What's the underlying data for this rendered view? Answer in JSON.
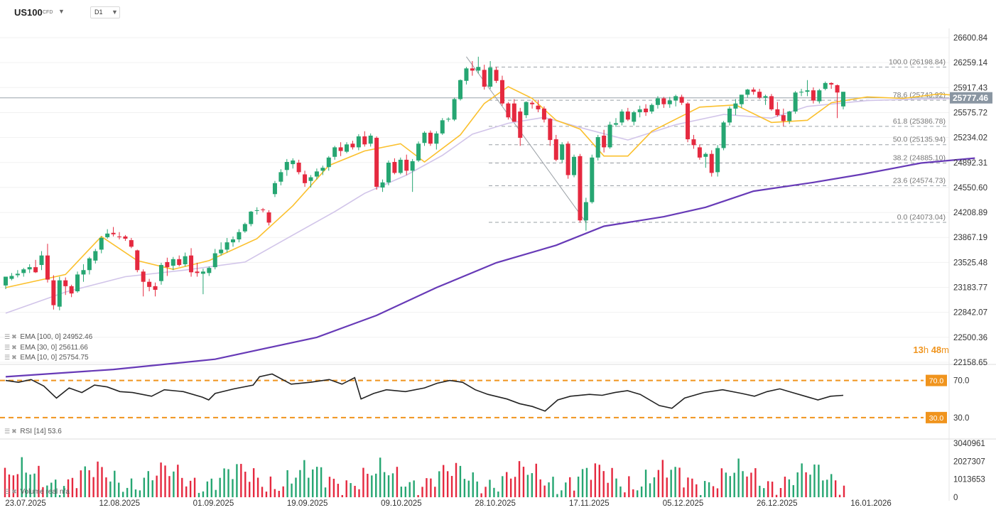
{
  "header": {
    "symbol": "US100",
    "symbol_type": "CFD",
    "timeframe": "D1"
  },
  "chart_data": {
    "type": "candlestick",
    "price_axis_ticks": [
      "26600.84",
      "26259.14",
      "25917.43",
      "25575.72",
      "25234.02",
      "24892.31",
      "24550.60",
      "24208.89",
      "23867.19",
      "23525.48",
      "23183.77",
      "22842.07",
      "22500.36",
      "22158.65"
    ],
    "ylim": [
      22158.65,
      26600.84
    ],
    "date_ticks": [
      "23.07.2025",
      "12.08.2025",
      "01.09.2025",
      "19.09.2025",
      "09.10.2025",
      "28.10.2025",
      "17.11.2025",
      "05.12.2025",
      "26.12.2025",
      "16.01.2026"
    ],
    "last_price": "25777.46",
    "candles_ohlc": [
      [
        23210,
        23330,
        23160,
        23330
      ],
      [
        23300,
        23380,
        23280,
        23340
      ],
      [
        23350,
        23420,
        23320,
        23370
      ],
      [
        23380,
        23450,
        23330,
        23430
      ],
      [
        23430,
        23500,
        23380,
        23460
      ],
      [
        23460,
        23560,
        23380,
        23390
      ],
      [
        23490,
        23680,
        23420,
        23620
      ],
      [
        23620,
        23780,
        23250,
        23290
      ],
      [
        23280,
        23350,
        22880,
        22940
      ],
      [
        22920,
        23330,
        22870,
        23280
      ],
      [
        23280,
        23320,
        23080,
        23200
      ],
      [
        23200,
        23220,
        23050,
        23100
      ],
      [
        23130,
        23400,
        23110,
        23360
      ],
      [
        23360,
        23500,
        23260,
        23420
      ],
      [
        23420,
        23600,
        23360,
        23580
      ],
      [
        23550,
        23710,
        23510,
        23680
      ],
      [
        23700,
        23880,
        23650,
        23860
      ],
      [
        23870,
        23980,
        23850,
        23920
      ],
      [
        23930,
        24010,
        23880,
        23910
      ],
      [
        23880,
        23940,
        23840,
        23870
      ],
      [
        23880,
        23900,
        23820,
        23850
      ],
      [
        23830,
        23860,
        23720,
        23740
      ],
      [
        23690,
        23700,
        23390,
        23420
      ],
      [
        23400,
        23430,
        23060,
        23260
      ],
      [
        23260,
        23300,
        23130,
        23190
      ],
      [
        23200,
        23250,
        23060,
        23150
      ],
      [
        23270,
        23520,
        23220,
        23490
      ],
      [
        23530,
        23590,
        23340,
        23460
      ],
      [
        23480,
        23600,
        23420,
        23570
      ],
      [
        23570,
        23620,
        23470,
        23490
      ],
      [
        23500,
        23660,
        23470,
        23610
      ],
      [
        23620,
        23720,
        23330,
        23390
      ],
      [
        23400,
        23520,
        23330,
        23380
      ],
      [
        23370,
        23440,
        23090,
        23400
      ],
      [
        23380,
        23470,
        23340,
        23450
      ],
      [
        23460,
        23710,
        23430,
        23650
      ],
      [
        23650,
        23800,
        23620,
        23700
      ],
      [
        23700,
        23860,
        23660,
        23800
      ],
      [
        23800,
        23880,
        23740,
        23840
      ],
      [
        23840,
        23980,
        23800,
        23940
      ],
      [
        23950,
        24070,
        23930,
        24050
      ],
      [
        24050,
        24230,
        24020,
        24220
      ],
      [
        24230,
        24280,
        24180,
        24240
      ],
      [
        24250,
        24270,
        24210,
        24240
      ],
      [
        24210,
        24240,
        24030,
        24070
      ],
      [
        24460,
        24640,
        24420,
        24610
      ],
      [
        24630,
        24800,
        24580,
        24760
      ],
      [
        24790,
        24940,
        24710,
        24900
      ],
      [
        24870,
        24950,
        24810,
        24920
      ],
      [
        24890,
        24930,
        24730,
        24760
      ],
      [
        24730,
        24780,
        24560,
        24610
      ],
      [
        24640,
        24720,
        24550,
        24690
      ],
      [
        24700,
        24810,
        24660,
        24770
      ],
      [
        24780,
        24850,
        24720,
        24820
      ],
      [
        24830,
        24980,
        24780,
        24960
      ],
      [
        24970,
        25120,
        24930,
        25100
      ],
      [
        25100,
        25170,
        24980,
        25050
      ],
      [
        25040,
        25170,
        25020,
        25140
      ],
      [
        25150,
        25190,
        25070,
        25100
      ],
      [
        25100,
        25280,
        25060,
        25250
      ],
      [
        25250,
        25320,
        25110,
        25140
      ],
      [
        25150,
        25290,
        25110,
        25260
      ],
      [
        25230,
        25250,
        24520,
        24560
      ],
      [
        24550,
        24660,
        24490,
        24620
      ],
      [
        24620,
        24920,
        24580,
        24890
      ],
      [
        24900,
        24950,
        24730,
        24750
      ],
      [
        24750,
        24960,
        24730,
        24930
      ],
      [
        24930,
        25000,
        24720,
        24780
      ],
      [
        24780,
        24940,
        24490,
        24910
      ],
      [
        24920,
        25180,
        24900,
        25150
      ],
      [
        25160,
        25320,
        25120,
        25300
      ],
      [
        25300,
        25330,
        25120,
        25150
      ],
      [
        25150,
        25320,
        25070,
        25290
      ],
      [
        25290,
        25500,
        25270,
        25470
      ],
      [
        25480,
        25510,
        25450,
        25490
      ],
      [
        25480,
        25780,
        25460,
        25760
      ],
      [
        25760,
        26030,
        25740,
        26020
      ],
      [
        26010,
        26200,
        25960,
        26180
      ],
      [
        26180,
        26280,
        26080,
        26150
      ],
      [
        26150,
        26340,
        26110,
        26200
      ],
      [
        26160,
        26230,
        25890,
        25930
      ],
      [
        25930,
        26280,
        25900,
        26190
      ],
      [
        26160,
        26200,
        25980,
        26010
      ],
      [
        26020,
        26080,
        25670,
        25700
      ],
      [
        25700,
        25720,
        25480,
        25510
      ],
      [
        25700,
        25760,
        25450,
        25450
      ],
      [
        25590,
        25640,
        25120,
        25230
      ],
      [
        25540,
        25730,
        25500,
        25720
      ],
      [
        25710,
        25740,
        25630,
        25690
      ],
      [
        25670,
        25750,
        25580,
        25620
      ],
      [
        25630,
        25660,
        25440,
        25480
      ],
      [
        25490,
        25500,
        25120,
        25200
      ],
      [
        25210,
        25270,
        24910,
        24930
      ],
      [
        24930,
        25170,
        24890,
        25140
      ],
      [
        25150,
        25180,
        24670,
        24720
      ],
      [
        24720,
        25000,
        24690,
        24970
      ],
      [
        24980,
        25010,
        24070,
        24100
      ],
      [
        24100,
        24410,
        23960,
        24350
      ],
      [
        24350,
        25000,
        24330,
        24960
      ],
      [
        24960,
        25270,
        24920,
        25240
      ],
      [
        25260,
        25340,
        25030,
        25100
      ],
      [
        25100,
        25450,
        25080,
        25410
      ],
      [
        25410,
        25500,
        25380,
        25430
      ],
      [
        25440,
        25620,
        25400,
        25590
      ],
      [
        25590,
        25640,
        25460,
        25480
      ],
      [
        25450,
        25600,
        25400,
        25580
      ],
      [
        25580,
        25670,
        25510,
        25620
      ],
      [
        25630,
        25690,
        25530,
        25580
      ],
      [
        25590,
        25700,
        25560,
        25680
      ],
      [
        25680,
        25800,
        25630,
        25770
      ],
      [
        25770,
        25790,
        25640,
        25690
      ],
      [
        25690,
        25790,
        25640,
        25740
      ],
      [
        25740,
        25820,
        25660,
        25800
      ],
      [
        25790,
        25820,
        25680,
        25710
      ],
      [
        25700,
        25720,
        25170,
        25210
      ],
      [
        25210,
        25270,
        25080,
        25130
      ],
      [
        25100,
        25140,
        24930,
        24960
      ],
      [
        24970,
        25030,
        24820,
        25010
      ],
      [
        25010,
        25060,
        24700,
        24750
      ],
      [
        24760,
        25130,
        24700,
        25090
      ],
      [
        25090,
        25460,
        25060,
        25440
      ],
      [
        25440,
        25660,
        25400,
        25630
      ],
      [
        25630,
        25760,
        25540,
        25700
      ],
      [
        25690,
        25820,
        25640,
        25820
      ],
      [
        25820,
        25900,
        25780,
        25890
      ],
      [
        25890,
        25920,
        25820,
        25860
      ],
      [
        25860,
        25900,
        25760,
        25780
      ],
      [
        25780,
        25820,
        25680,
        25800
      ],
      [
        25800,
        25830,
        25600,
        25620
      ],
      [
        25620,
        25720,
        25520,
        25540
      ],
      [
        25540,
        25630,
        25390,
        25460
      ],
      [
        25460,
        25600,
        25420,
        25590
      ],
      [
        25590,
        25870,
        25560,
        25850
      ],
      [
        25850,
        25900,
        25800,
        25860
      ],
      [
        25860,
        26020,
        25800,
        25880
      ],
      [
        25880,
        25920,
        25700,
        25740
      ],
      [
        25730,
        25900,
        25700,
        25880
      ],
      [
        25900,
        26000,
        25880,
        25980
      ],
      [
        25980,
        25990,
        25900,
        25960
      ],
      [
        25950,
        25960,
        25500,
        25850
      ],
      [
        25660,
        25860,
        25620,
        25860
      ]
    ],
    "series": [
      {
        "name": "EMA [100, 0]",
        "value": "24952.46",
        "color": "#673ab7",
        "line": [
          [
            0,
            21960
          ],
          [
            18,
            22060
          ],
          [
            35,
            22200
          ],
          [
            52,
            22500
          ],
          [
            62,
            22800
          ],
          [
            72,
            23180
          ],
          [
            82,
            23520
          ],
          [
            92,
            23760
          ],
          [
            100,
            24020
          ],
          [
            110,
            24150
          ],
          [
            117,
            24280
          ],
          [
            125,
            24500
          ],
          [
            135,
            24620
          ],
          [
            143,
            24730
          ],
          [
            153,
            24885
          ],
          [
            162,
            24952
          ]
        ]
      },
      {
        "name": "EMA [30, 0]",
        "value": "25611.66",
        "color": "#d1c4e9",
        "line": [
          [
            0,
            22830
          ],
          [
            10,
            23120
          ],
          [
            20,
            23330
          ],
          [
            30,
            23420
          ],
          [
            40,
            23530
          ],
          [
            48,
            23900
          ],
          [
            55,
            24220
          ],
          [
            60,
            24470
          ],
          [
            67,
            24720
          ],
          [
            73,
            24990
          ],
          [
            78,
            25280
          ],
          [
            84,
            25430
          ],
          [
            90,
            25510
          ],
          [
            97,
            25350
          ],
          [
            104,
            25200
          ],
          [
            112,
            25410
          ],
          [
            120,
            25550
          ],
          [
            128,
            25500
          ],
          [
            134,
            25660
          ],
          [
            144,
            25740
          ],
          [
            152,
            25760
          ],
          [
            162,
            25770
          ]
        ]
      },
      {
        "name": "EMA [10, 0]",
        "value": "25754.75",
        "color": "#fbc02d",
        "line": [
          [
            0,
            23180
          ],
          [
            10,
            23360
          ],
          [
            16,
            23880
          ],
          [
            22,
            23550
          ],
          [
            28,
            23430
          ],
          [
            34,
            23550
          ],
          [
            42,
            23850
          ],
          [
            48,
            24300
          ],
          [
            54,
            24850
          ],
          [
            60,
            25050
          ],
          [
            66,
            25150
          ],
          [
            70,
            24900
          ],
          [
            76,
            25270
          ],
          [
            80,
            25700
          ],
          [
            84,
            25930
          ],
          [
            88,
            25770
          ],
          [
            92,
            25470
          ],
          [
            96,
            25350
          ],
          [
            100,
            24980
          ],
          [
            104,
            24980
          ],
          [
            108,
            25320
          ],
          [
            116,
            25650
          ],
          [
            122,
            25680
          ],
          [
            128,
            25440
          ],
          [
            134,
            25470
          ],
          [
            138,
            25710
          ],
          [
            144,
            25790
          ],
          [
            150,
            25770
          ],
          [
            156,
            25830
          ],
          [
            162,
            25790
          ]
        ]
      }
    ],
    "fibonacci": [
      {
        "label": "100.0 (26198.84)",
        "price": 26198.84
      },
      {
        "label": "78.6 (25743.92)",
        "price": 25743.92
      },
      {
        "label": "61.8 (25386.78)",
        "price": 25386.78
      },
      {
        "label": "50.0 (25135.94)",
        "price": 25135.94
      },
      {
        "label": "38.2 (24885.10)",
        "price": 24885.1
      },
      {
        "label": "23.6 (24574.73)",
        "price": 24574.73
      },
      {
        "label": "0.0 (24073.04)",
        "price": 24073.04
      }
    ],
    "rsi": {
      "label": "RSI",
      "params": "[14]",
      "value": "53.6",
      "levels": [
        "70.0",
        "30.0"
      ],
      "ticks": [
        "70.0",
        "30.0"
      ],
      "line": [
        [
          0,
          70
        ],
        [
          4,
          68
        ],
        [
          8,
          71
        ],
        [
          12,
          64
        ],
        [
          16,
          51
        ],
        [
          20,
          62
        ],
        [
          24,
          57
        ],
        [
          28,
          65
        ],
        [
          32,
          63
        ],
        [
          36,
          58
        ],
        [
          40,
          57
        ],
        [
          46,
          53
        ],
        [
          50,
          60
        ],
        [
          56,
          58
        ],
        [
          62,
          52
        ],
        [
          64,
          49
        ],
        [
          66,
          56
        ],
        [
          72,
          61
        ],
        [
          78,
          65
        ],
        [
          80,
          74
        ],
        [
          84,
          77
        ],
        [
          90,
          66
        ],
        [
          96,
          68
        ],
        [
          102,
          71
        ],
        [
          106,
          66
        ],
        [
          110,
          73
        ],
        [
          112,
          50
        ],
        [
          116,
          56
        ],
        [
          120,
          60
        ],
        [
          126,
          58
        ],
        [
          132,
          62
        ],
        [
          136,
          67
        ],
        [
          140,
          70
        ],
        [
          144,
          68
        ],
        [
          148,
          60
        ],
        [
          152,
          55
        ],
        [
          158,
          50
        ],
        [
          162,
          45
        ],
        [
          166,
          42
        ],
        [
          170,
          37
        ],
        [
          174,
          49
        ],
        [
          178,
          53
        ],
        [
          184,
          55
        ],
        [
          188,
          54
        ],
        [
          192,
          57
        ],
        [
          196,
          59
        ],
        [
          200,
          55
        ],
        [
          206,
          43
        ],
        [
          210,
          40
        ],
        [
          214,
          51
        ],
        [
          220,
          57
        ],
        [
          226,
          60
        ],
        [
          232,
          56
        ],
        [
          236,
          53
        ],
        [
          240,
          58
        ],
        [
          244,
          61
        ],
        [
          248,
          57
        ],
        [
          252,
          53
        ],
        [
          256,
          49
        ],
        [
          260,
          53
        ],
        [
          264,
          54
        ]
      ]
    },
    "volume": {
      "label": "Volume",
      "extra": "real n/a",
      "ticks": [
        "3040961",
        "2027307",
        "1013653",
        "0"
      ]
    }
  },
  "timer": {
    "h": "13",
    "h_unit": "h",
    "m": "48",
    "m_unit": "m"
  }
}
